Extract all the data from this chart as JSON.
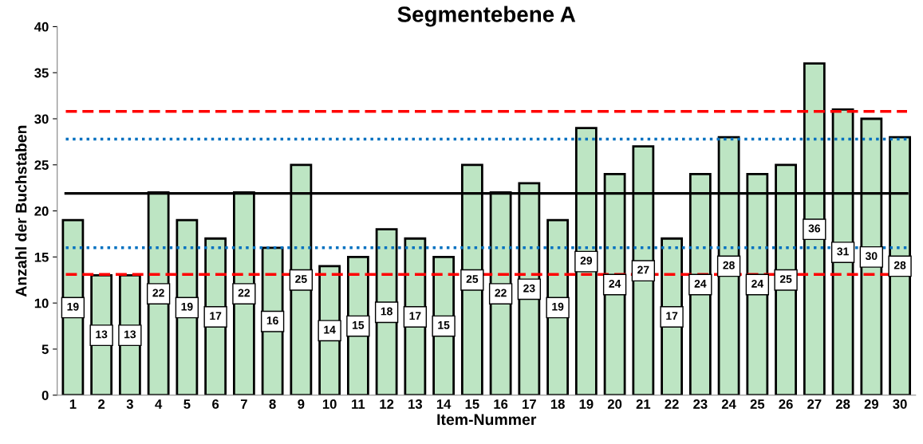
{
  "chart_data": {
    "type": "bar",
    "title": "Segmentebene A",
    "xlabel": "Item-Nummer",
    "ylabel": "Anzahl der Buchstaben",
    "categories": [
      "1",
      "2",
      "3",
      "4",
      "5",
      "6",
      "7",
      "8",
      "9",
      "10",
      "11",
      "12",
      "13",
      "14",
      "15",
      "16",
      "17",
      "18",
      "19",
      "20",
      "21",
      "22",
      "23",
      "24",
      "25",
      "26",
      "27",
      "28",
      "29",
      "30"
    ],
    "values": [
      19,
      13,
      13,
      22,
      19,
      17,
      22,
      16,
      25,
      14,
      15,
      18,
      17,
      15,
      25,
      22,
      23,
      19,
      29,
      24,
      27,
      17,
      24,
      28,
      24,
      25,
      36,
      31,
      30,
      28
    ],
    "color": "#bde5c3",
    "data_labels": true,
    "grid": false,
    "legend": false,
    "ylim": [
      0,
      40
    ],
    "yticks": [
      0,
      5,
      10,
      15,
      20,
      25,
      30,
      35,
      40
    ],
    "ref_lines": [
      {
        "axis": "y",
        "value": 30.8,
        "color": "#ff0000",
        "line_style": "dashed"
      },
      {
        "axis": "y",
        "value": 27.8,
        "color": "#0070c0",
        "line_style": "dotted"
      },
      {
        "axis": "y",
        "value": 21.9,
        "color": "#000000",
        "line_style": "solid"
      },
      {
        "axis": "y",
        "value": 16.0,
        "color": "#0070c0",
        "line_style": "dotted"
      },
      {
        "axis": "y",
        "value": 13.1,
        "color": "#ff0000",
        "line_style": "dashed"
      }
    ]
  }
}
